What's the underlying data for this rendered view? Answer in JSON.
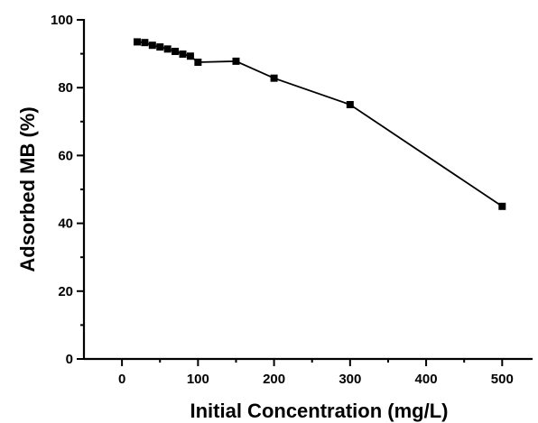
{
  "chart_data": {
    "type": "line",
    "title": "",
    "xlabel": "Initial Concentration (mg/L)",
    "ylabel": "Adsorbed MB (%)",
    "xlim": [
      -50,
      540
    ],
    "ylim": [
      0,
      100
    ],
    "x_ticks": [
      0,
      100,
      200,
      300,
      400,
      500
    ],
    "y_ticks": [
      0,
      20,
      40,
      60,
      80,
      100
    ],
    "x_tick_labels": [
      "0",
      "100",
      "200",
      "300",
      "400",
      "500"
    ],
    "y_tick_labels": [
      "0",
      "20",
      "40",
      "60",
      "80",
      "100"
    ],
    "grid": false,
    "marker": "square",
    "series": [
      {
        "color": "#000000",
        "x": [
          20,
          30,
          40,
          50,
          60,
          70,
          80,
          90,
          100,
          150,
          200,
          300,
          500
        ],
        "y": [
          93.5,
          93.3,
          92.5,
          92.0,
          91.4,
          90.7,
          89.9,
          89.3,
          87.5,
          87.8,
          82.8,
          75.0,
          45.0
        ]
      }
    ]
  }
}
